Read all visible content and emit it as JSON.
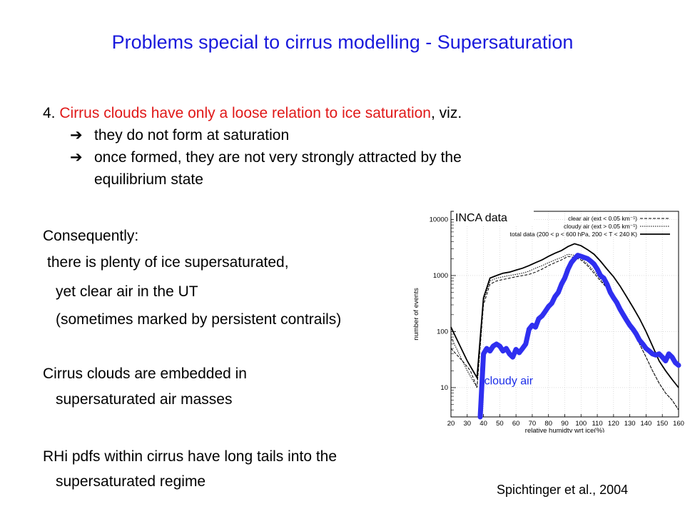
{
  "title": "Problems special to cirrus modelling - Supersaturation",
  "point4": {
    "number": "4.",
    "highlight": "Cirrus clouds have only a loose relation to ice saturation",
    "rest": ", viz.",
    "arrow_glyph": "➔",
    "bullet1": "they do not form at saturation",
    "bullet2_line1": "once formed, they are not very strongly attracted by the",
    "bullet2_line2": "equilibrium state"
  },
  "consequently": {
    "heading": "Consequently:",
    "line1": "there is plenty of ice supersaturated,",
    "line2": "yet clear air in the UT",
    "line3": "(sometimes marked by persistent contrails)"
  },
  "embedded": {
    "line1": "Cirrus clouds are embedded in",
    "line2": "supersaturated air masses"
  },
  "rhi": {
    "line1": "RHi pdfs within cirrus have long tails into the",
    "line2": "supersaturated regime"
  },
  "citation": "Spichtinger et al., 2004",
  "chart_data": {
    "type": "line",
    "title": "",
    "inset_label": "INCA data",
    "annotation": "cloudy air",
    "xlabel": "relative humidty wrt ice(%)",
    "ylabel": "number of events",
    "xlim": [
      20,
      160
    ],
    "ylim": [
      3,
      14000
    ],
    "yscale": "log",
    "xticks": [
      20,
      30,
      40,
      50,
      60,
      70,
      80,
      90,
      100,
      110,
      120,
      130,
      140,
      150,
      160
    ],
    "yticks": [
      {
        "value": 10,
        "label": "10"
      },
      {
        "value": 100,
        "label": "100"
      },
      {
        "value": 1000,
        "label": "1000"
      },
      {
        "value": 10000,
        "label": "10000"
      }
    ],
    "grid": true,
    "legend_position": "top-right",
    "highlight_color": "#2f2ff0",
    "series": [
      {
        "name": "clear air (ext < 0.05 km⁻¹)",
        "style": "dashed",
        "x": [
          20,
          27,
          32,
          36,
          40,
          44,
          48,
          52,
          56,
          60,
          64,
          68,
          72,
          76,
          80,
          84,
          88,
          92,
          96,
          100,
          104,
          108,
          112,
          116,
          120,
          124,
          128,
          132,
          136,
          140,
          144,
          148,
          152,
          156,
          160
        ],
        "y": [
          50,
          30,
          20,
          10,
          300,
          700,
          800,
          850,
          900,
          950,
          1000,
          1050,
          1150,
          1300,
          1500,
          1700,
          1900,
          2200,
          2100,
          1900,
          1500,
          1100,
          800,
          600,
          400,
          250,
          150,
          100,
          60,
          35,
          20,
          12,
          8,
          6,
          4
        ]
      },
      {
        "name": "cloudy air (ext > 0.05 km⁻¹)",
        "style": "dotted",
        "x": [
          20,
          25,
          30,
          36,
          40,
          44,
          48,
          52,
          56,
          60,
          64,
          68,
          72,
          76,
          80,
          84,
          88,
          92,
          96,
          100,
          104,
          108,
          112,
          116,
          120,
          124,
          128,
          132,
          136,
          140,
          144,
          148,
          152,
          156,
          160
        ],
        "y": [
          80,
          40,
          20,
          10,
          350,
          800,
          900,
          950,
          1000,
          1050,
          1100,
          1200,
          1350,
          1500,
          1700,
          1900,
          2100,
          2400,
          2300,
          2000,
          1600,
          1200,
          850,
          600,
          420,
          260,
          160,
          100,
          60,
          35,
          20,
          12,
          8,
          6,
          4
        ]
      },
      {
        "name": "total data (200 < p < 600 hPa, 200 < T < 240 K)",
        "style": "solid",
        "x": [
          20,
          25,
          30,
          36,
          40,
          44,
          48,
          52,
          56,
          60,
          64,
          68,
          72,
          76,
          80,
          84,
          88,
          92,
          96,
          100,
          104,
          108,
          112,
          116,
          120,
          124,
          128,
          132,
          136,
          140,
          144,
          148,
          152,
          156,
          160
        ],
        "y": [
          120,
          60,
          30,
          15,
          400,
          900,
          1000,
          1100,
          1150,
          1250,
          1350,
          1500,
          1700,
          1900,
          2200,
          2500,
          2800,
          3300,
          3700,
          3400,
          2900,
          2400,
          1800,
          1300,
          950,
          650,
          420,
          270,
          170,
          100,
          55,
          30,
          20,
          14,
          10
        ]
      },
      {
        "name": "cloudy air (highlight)",
        "style": "highlight",
        "x": [
          38,
          40,
          42,
          44,
          46,
          48,
          50,
          52,
          54,
          56,
          58,
          60,
          62,
          64,
          66,
          68,
          70,
          72,
          74,
          76,
          78,
          80,
          82,
          84,
          86,
          88,
          90,
          92,
          94,
          96,
          98,
          100,
          102,
          104,
          106,
          108,
          110,
          112,
          114,
          116,
          118,
          120,
          122,
          124,
          126,
          128,
          130,
          132,
          134,
          136,
          138,
          140,
          142,
          144,
          146,
          148,
          150,
          152,
          154,
          156,
          158,
          160
        ],
        "y": [
          3,
          40,
          50,
          45,
          55,
          60,
          55,
          45,
          50,
          40,
          35,
          48,
          42,
          50,
          60,
          110,
          130,
          120,
          170,
          190,
          230,
          280,
          320,
          420,
          500,
          700,
          900,
          1300,
          1700,
          2000,
          2300,
          2200,
          2100,
          2000,
          1800,
          1600,
          1300,
          1000,
          900,
          700,
          500,
          400,
          330,
          250,
          200,
          160,
          130,
          110,
          90,
          70,
          60,
          50,
          45,
          40,
          38,
          40,
          35,
          30,
          40,
          35,
          28,
          25
        ]
      }
    ]
  }
}
